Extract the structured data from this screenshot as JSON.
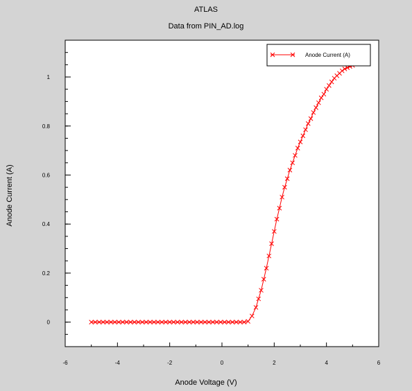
{
  "chart_data": {
    "type": "line",
    "title": "ATLAS",
    "subtitle": "Data from PIN_AD.log",
    "xlabel": "Anode Voltage (V)",
    "ylabel": "Anode Current (A)",
    "xlim": [
      -6,
      6
    ],
    "ylim": [
      -0.1,
      1.15
    ],
    "x_ticks": [
      -6,
      -4,
      -2,
      0,
      2,
      4,
      6
    ],
    "y_ticks": [
      0,
      0.2,
      0.4,
      0.6,
      0.8,
      1
    ],
    "x_tick_labels": [
      "-6",
      "-4",
      "-2",
      "0",
      "2",
      "4",
      "6"
    ],
    "y_tick_labels": [
      "0",
      "0.2",
      "0.4",
      "0.6",
      "0.8",
      "1"
    ],
    "grid": false,
    "legend_position": "top-right",
    "series": [
      {
        "name": "Anode Current (A)",
        "color": "#ff0000",
        "marker": "x",
        "x": [
          -5.0,
          -4.85,
          -4.7,
          -4.55,
          -4.4,
          -4.25,
          -4.1,
          -3.95,
          -3.8,
          -3.65,
          -3.5,
          -3.35,
          -3.2,
          -3.05,
          -2.9,
          -2.75,
          -2.6,
          -2.45,
          -2.3,
          -2.15,
          -2.0,
          -1.85,
          -1.7,
          -1.55,
          -1.4,
          -1.25,
          -1.1,
          -0.95,
          -0.8,
          -0.65,
          -0.5,
          -0.35,
          -0.2,
          -0.05,
          0.1,
          0.25,
          0.4,
          0.55,
          0.7,
          0.85,
          1.0,
          1.15,
          1.3,
          1.4,
          1.5,
          1.6,
          1.7,
          1.8,
          1.9,
          2.0,
          2.1,
          2.2,
          2.3,
          2.4,
          2.5,
          2.6,
          2.7,
          2.8,
          2.9,
          3.0,
          3.1,
          3.2,
          3.3,
          3.4,
          3.5,
          3.6,
          3.7,
          3.8,
          3.9,
          4.0,
          4.1,
          4.2,
          4.3,
          4.4,
          4.5,
          4.6,
          4.7,
          4.8,
          4.9,
          5.0
        ],
        "y": [
          0,
          0,
          0,
          0,
          0,
          0,
          0,
          0,
          0,
          0,
          0,
          0,
          0,
          0,
          0,
          0,
          0,
          0,
          0,
          0,
          0,
          0,
          0,
          0,
          0,
          0,
          0,
          0,
          0,
          0,
          0,
          0,
          0,
          0,
          0,
          0,
          0,
          0,
          0,
          0,
          0.003,
          0.025,
          0.06,
          0.095,
          0.13,
          0.175,
          0.22,
          0.27,
          0.32,
          0.37,
          0.42,
          0.465,
          0.51,
          0.55,
          0.585,
          0.62,
          0.65,
          0.68,
          0.71,
          0.735,
          0.76,
          0.785,
          0.81,
          0.83,
          0.855,
          0.875,
          0.895,
          0.915,
          0.93,
          0.95,
          0.965,
          0.98,
          0.995,
          1.005,
          1.015,
          1.025,
          1.033,
          1.038,
          1.043,
          1.047
        ]
      }
    ]
  }
}
